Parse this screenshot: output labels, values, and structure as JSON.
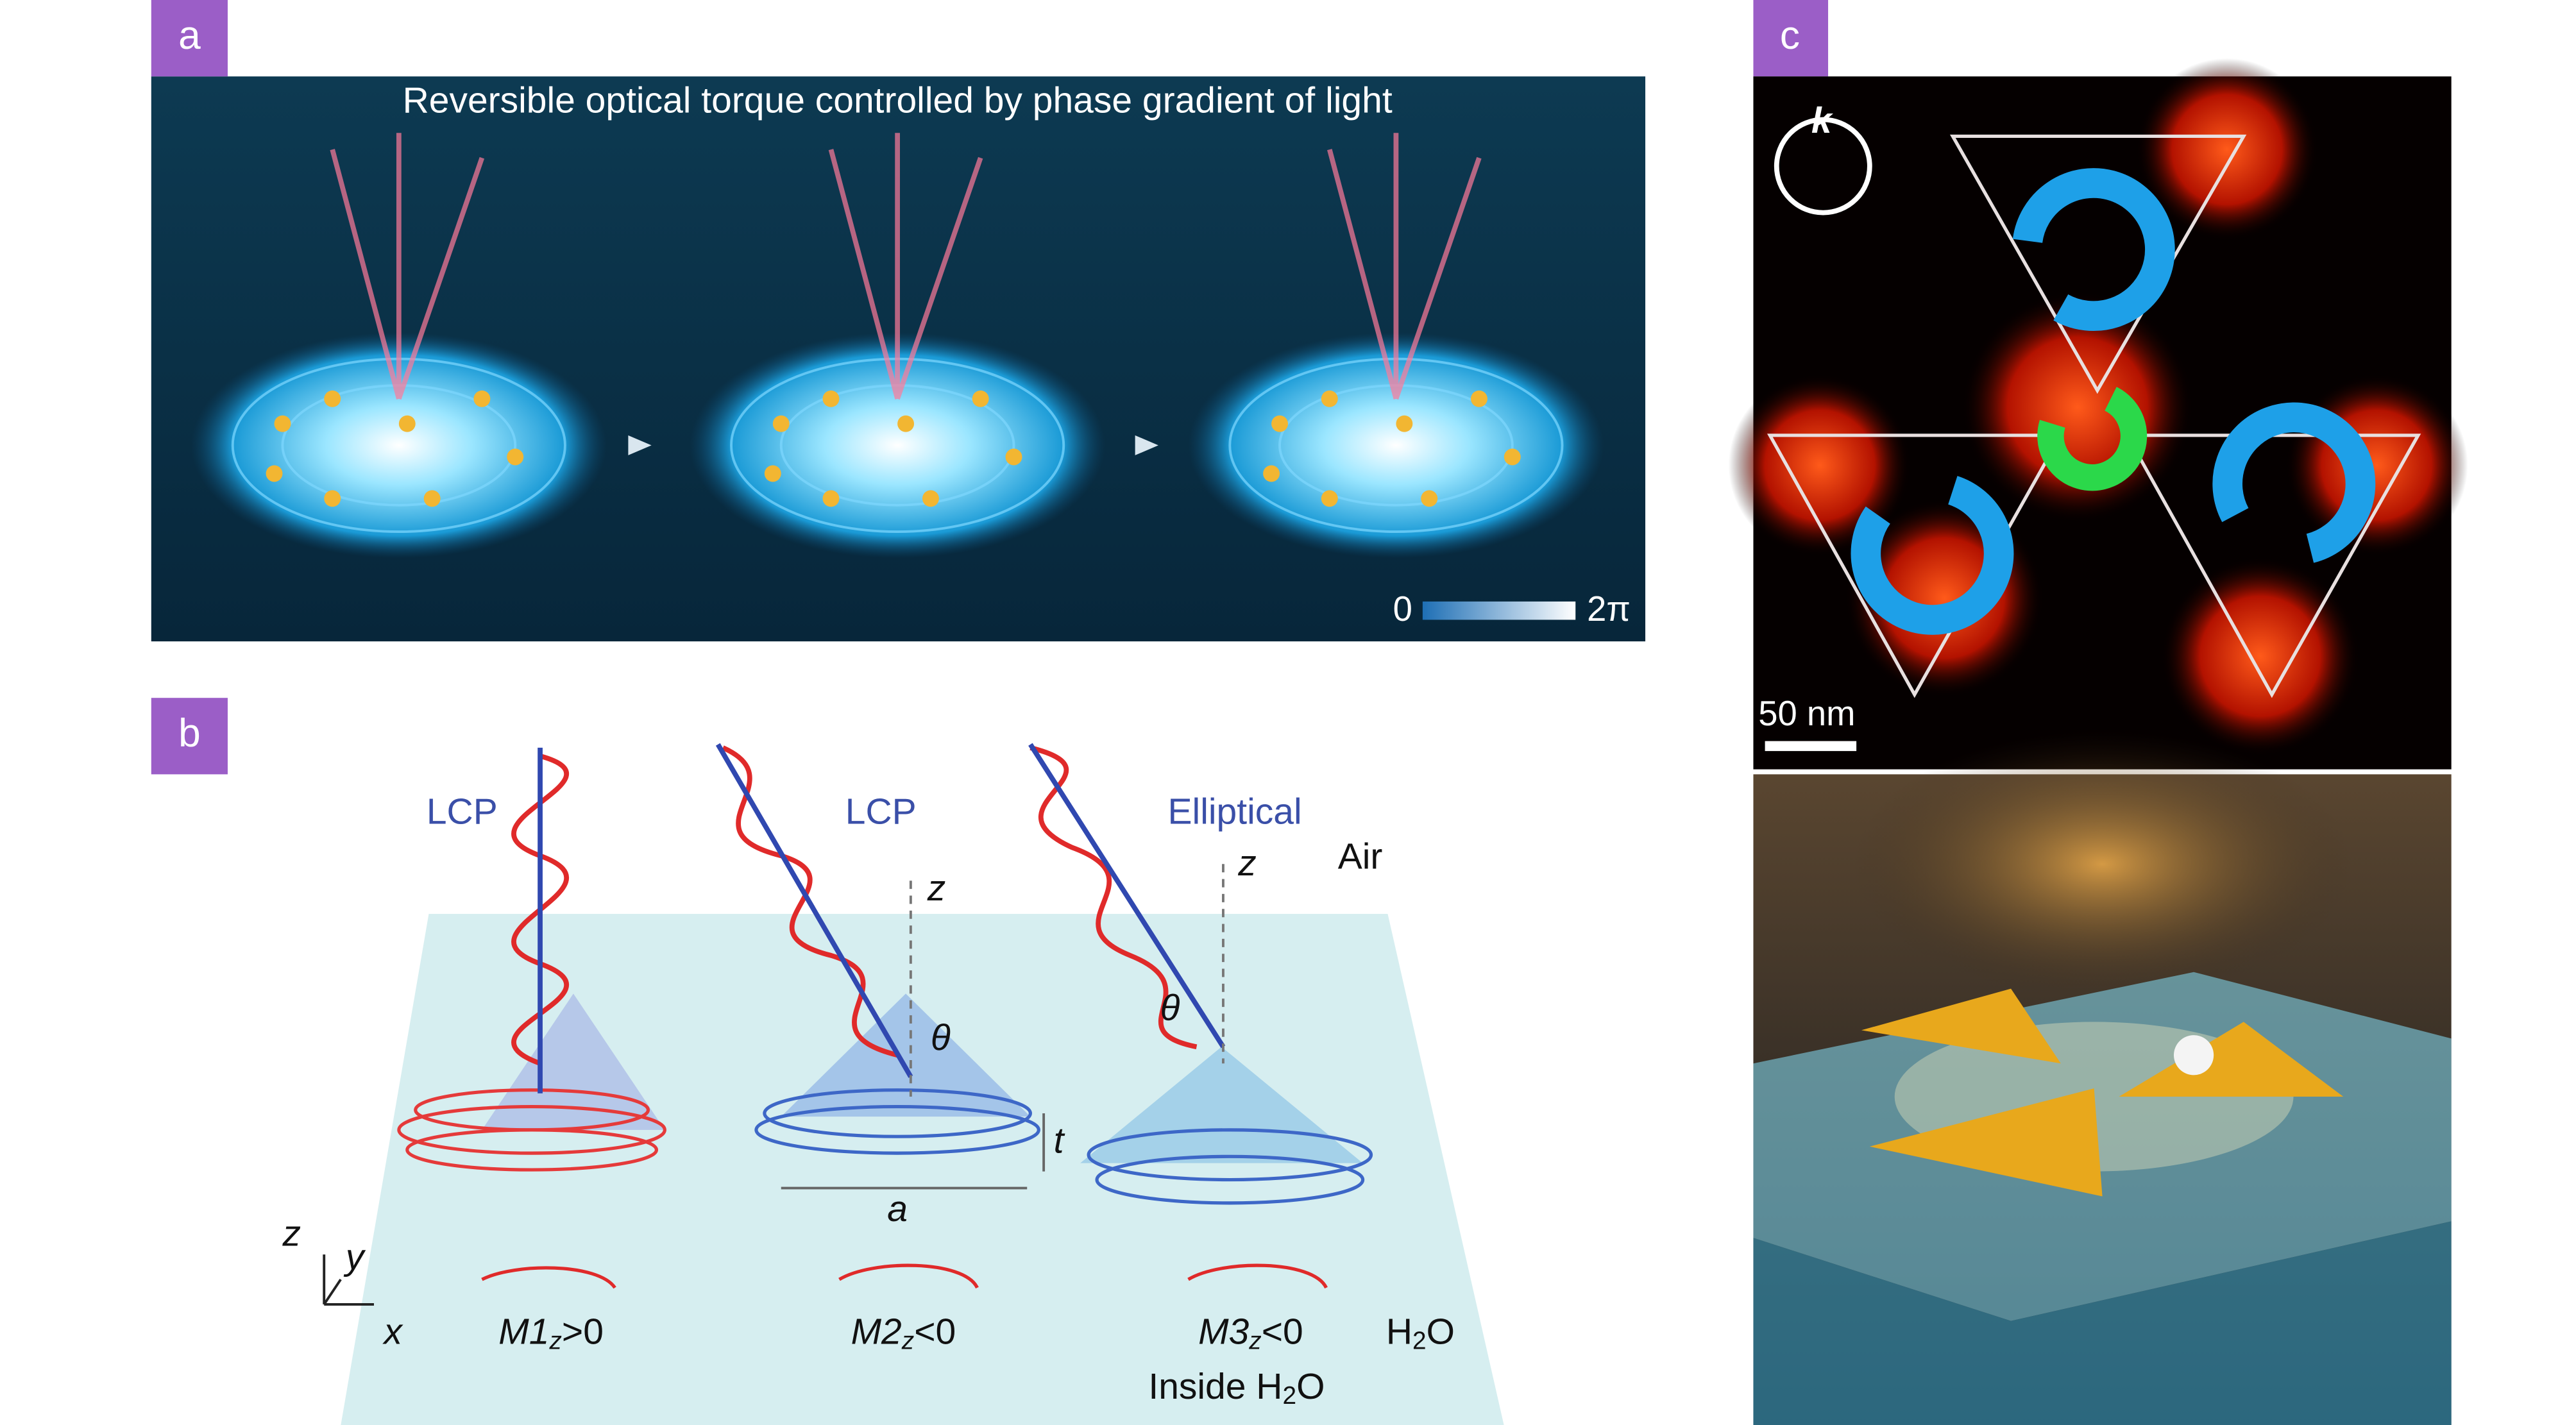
{
  "panels": {
    "a": {
      "label": "a",
      "title": "Reversible optical torque controlled by phase gradient of light",
      "colorbar": {
        "min": "0",
        "max": "2π"
      }
    },
    "b": {
      "label": "b",
      "lcp1": "LCP",
      "lcp2": "LCP",
      "elliptical": "Elliptical",
      "z1": "z",
      "z2": "z",
      "air": "Air",
      "theta1": "θ",
      "theta2": "θ",
      "t": "t",
      "a": "a",
      "axes": {
        "z": "z",
        "y": "y",
        "x": "x"
      },
      "m1": {
        "main": "M1",
        "sub": "z",
        "rest": ">0"
      },
      "m2": {
        "main": "M2",
        "sub": "z",
        "rest": "<0"
      },
      "m3": {
        "main": "M3",
        "sub": "z",
        "rest": "<0"
      },
      "water": {
        "main": "H",
        "sub": "2",
        "rest": "O"
      },
      "inside": {
        "main": "Inside H",
        "sub": "2",
        "rest": "O"
      }
    },
    "c": {
      "label": "c",
      "k": "k",
      "scale": "50 nm"
    }
  }
}
